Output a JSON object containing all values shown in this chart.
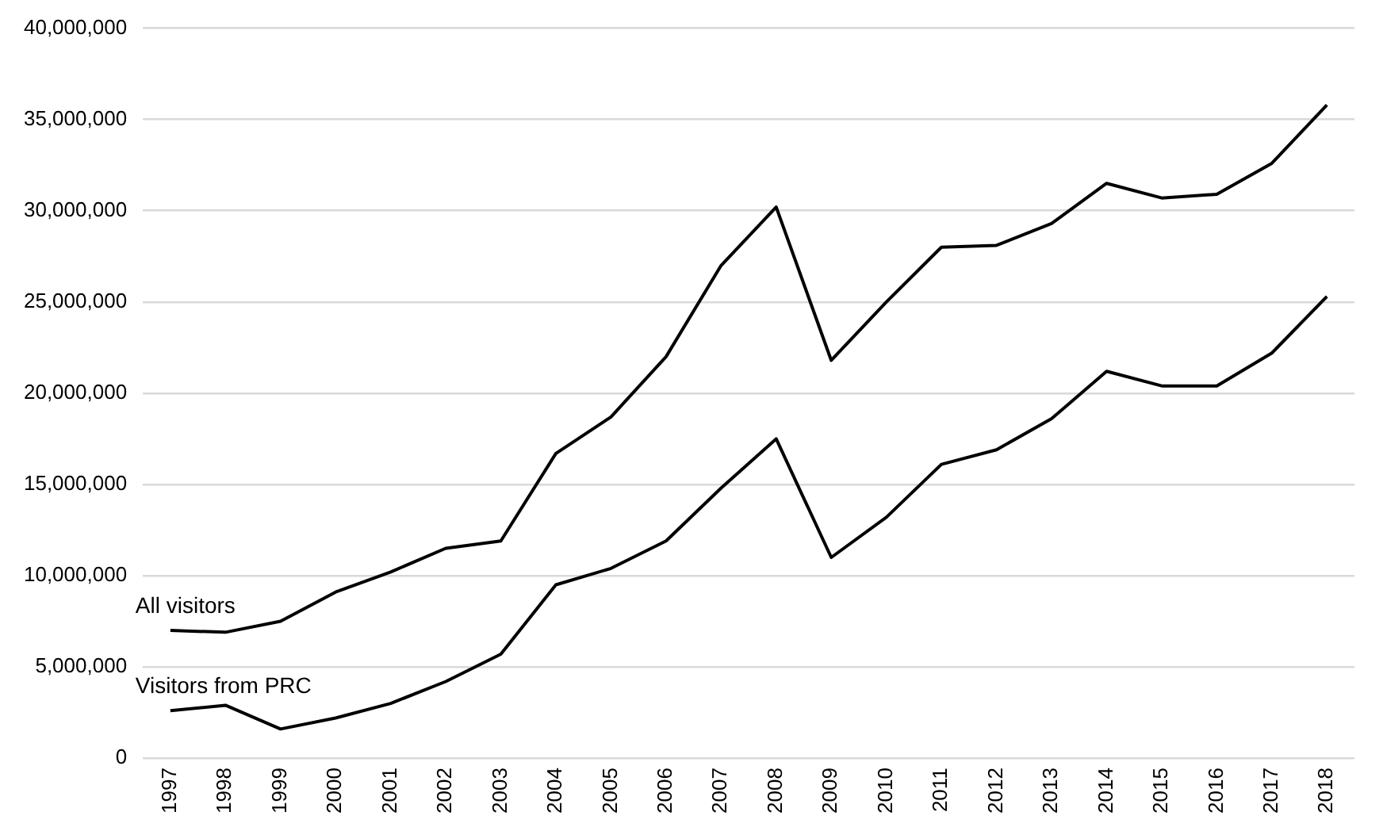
{
  "chart_data": {
    "type": "line",
    "categories": [
      "1997",
      "1998",
      "1999",
      "2000",
      "2001",
      "2002",
      "2003",
      "2004",
      "2005",
      "2006",
      "2007",
      "2008",
      "2009",
      "2010",
      "2011",
      "2012",
      "2013",
      "2014",
      "2015",
      "2016",
      "2017",
      "2018"
    ],
    "series": [
      {
        "name": "All visitors",
        "color": "#000000",
        "values": [
          7000000,
          6900000,
          7500000,
          9100000,
          10200000,
          11500000,
          11900000,
          16700000,
          18700000,
          22000000,
          27000000,
          30200000,
          21800000,
          25000000,
          28000000,
          28100000,
          29300000,
          31500000,
          30700000,
          30900000,
          32600000,
          35800000
        ]
      },
      {
        "name": "Visitors from PRC",
        "color": "#000000",
        "values": [
          2600000,
          2900000,
          1600000,
          2200000,
          3000000,
          4200000,
          5700000,
          9500000,
          10400000,
          11900000,
          14800000,
          17500000,
          11000000,
          13200000,
          16100000,
          16900000,
          18600000,
          21200000,
          20400000,
          20400000,
          22200000,
          25300000
        ]
      }
    ],
    "ylim": [
      0,
      40000000
    ],
    "yticks": [
      0,
      {
        "value": 5000000,
        "label": "5,000,000"
      },
      {
        "value": 10000000,
        "label": "10,000,000"
      },
      {
        "value": 15000000,
        "label": "15,000,000"
      },
      {
        "value": 20000000,
        "label": "20,000,000"
      },
      {
        "value": 25000000,
        "label": "25,000,000"
      },
      {
        "value": 30000000,
        "label": "30,000,000"
      },
      {
        "value": 35000000,
        "label": "35,000,000"
      },
      {
        "value": 40000000,
        "label": "40,000,000"
      }
    ],
    "grid": "y",
    "legend": false,
    "marker": "none",
    "line_style": "solid"
  }
}
